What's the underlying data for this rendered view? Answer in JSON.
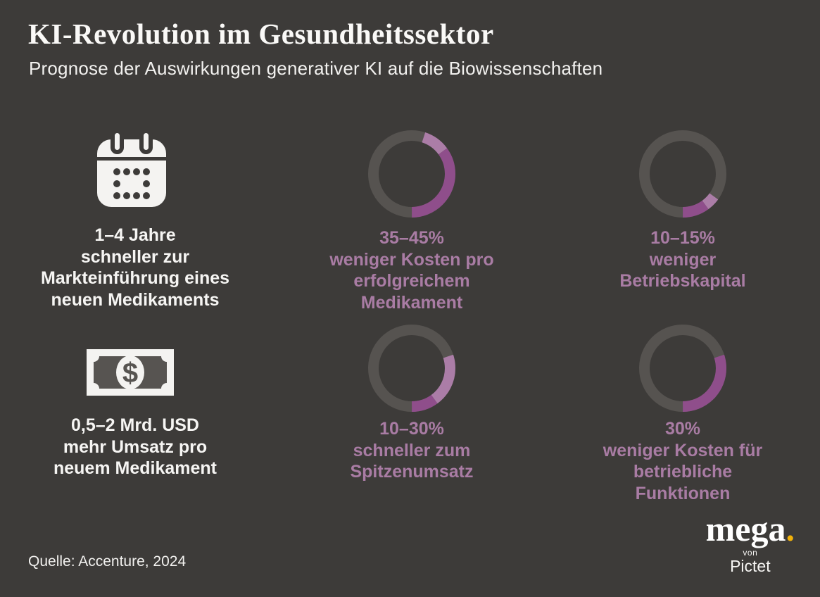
{
  "header": {
    "title": "KI-Revolution im Gesundheitssektor",
    "subtitle": "Prognose der Auswirkungen generativer KI auf die Biowissenschaften"
  },
  "colors": {
    "background": "#3d3b39",
    "ring_gray": "#565350",
    "purple_dark": "#8f4e8b",
    "purple_light": "#ab7da7",
    "text_purple": "#a97ca4",
    "icon_white": "#f4f3f1",
    "panel_gray": "#575451",
    "gold": "#f2b20a"
  },
  "stats": {
    "time_to_market": {
      "icon": "calendar-icon",
      "lines": [
        "1–4 Jahre",
        "schneller zur",
        "Markteinführung eines",
        "neuen Medikaments"
      ]
    },
    "revenue_per_drug": {
      "icon": "banknote-icon",
      "lines": [
        "0,5–2 Mrd. USD",
        "mehr Umsatz pro",
        "neuem Medikament"
      ]
    }
  },
  "chart_data": [
    {
      "type": "pie",
      "style": "donut",
      "value_label": "35–45%",
      "lower_pct": 35,
      "upper_pct": 45,
      "caption_lines": [
        "weniger Kosten pro",
        "erfolgreichem",
        "Medikament"
      ],
      "note": "dark segment = 35%, light segment = range to 45%, arc ends at 6 o'clock"
    },
    {
      "type": "pie",
      "style": "donut",
      "value_label": "10–15%",
      "lower_pct": 10,
      "upper_pct": 15,
      "caption_lines": [
        "weniger",
        "Betriebskapital"
      ],
      "note": "dark segment = 10%, light segment = range to 15%, arc ends at 6 o'clock"
    },
    {
      "type": "pie",
      "style": "donut",
      "value_label": "10–30%",
      "lower_pct": 10,
      "upper_pct": 30,
      "caption_lines": [
        "schneller zum",
        "Spitzenumsatz"
      ],
      "note": "dark segment = 10%, light segment = range to 30%, arc ends at 6 o'clock"
    },
    {
      "type": "pie",
      "style": "donut",
      "value_label": "30%",
      "lower_pct": 30,
      "upper_pct": 30,
      "caption_lines": [
        "weniger Kosten für",
        "betriebliche",
        "Funktionen"
      ],
      "note": "single dark segment = 30%, arc ends at 6 o'clock"
    }
  ],
  "footer": {
    "source": "Quelle: Accenture, 2024",
    "logo": {
      "brand": "mega",
      "dot": ".",
      "von": "von",
      "company": "Pictet"
    }
  }
}
